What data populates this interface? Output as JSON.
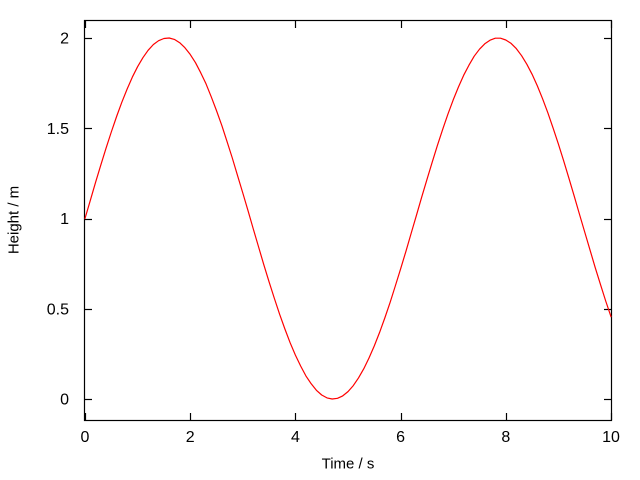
{
  "window": {
    "background": "#ffffff"
  },
  "chart_data": {
    "type": "line",
    "title": "",
    "xlabel": "Time / s",
    "ylabel": "Height / m",
    "xlim": [
      0,
      10
    ],
    "ylim": [
      0,
      2
    ],
    "xticks": [
      0,
      2,
      4,
      6,
      8,
      10
    ],
    "xtick_labels": [
      "0",
      "2",
      "4",
      "6",
      "8",
      "10"
    ],
    "yticks": [
      0,
      0.5,
      1,
      1.5,
      2
    ],
    "ytick_labels": [
      "0",
      "0.5",
      "1",
      "1.5",
      "2"
    ],
    "grid": false,
    "legend": "none",
    "tick_style": "inward-mirrored",
    "border_color": "#000000",
    "text_color": "#000000",
    "background_color": "#ffffff",
    "series": [
      {
        "name": "height",
        "color": "#ff0000",
        "x": [
          0.0,
          0.1,
          0.2,
          0.3,
          0.4,
          0.5,
          0.6,
          0.7,
          0.8,
          0.9,
          1.0,
          1.1,
          1.2,
          1.3,
          1.4,
          1.5,
          1.6,
          1.7,
          1.8,
          1.9,
          2.0,
          2.1,
          2.2,
          2.3,
          2.4,
          2.5,
          2.6,
          2.7,
          2.8,
          2.9,
          3.0,
          3.1,
          3.2,
          3.3,
          3.4,
          3.5,
          3.6,
          3.7,
          3.8,
          3.9,
          4.0,
          4.1,
          4.2,
          4.3,
          4.4,
          4.5,
          4.6,
          4.7,
          4.8,
          4.9,
          5.0,
          5.1,
          5.2,
          5.3,
          5.4,
          5.5,
          5.6,
          5.7,
          5.8,
          5.9,
          6.0,
          6.1,
          6.2,
          6.3,
          6.4,
          6.5,
          6.6,
          6.7,
          6.8,
          6.9,
          7.0,
          7.1,
          7.2,
          7.3,
          7.4,
          7.5,
          7.6,
          7.7,
          7.8,
          7.9,
          8.0,
          8.1,
          8.2,
          8.3,
          8.4,
          8.5,
          8.6,
          8.7,
          8.8,
          8.9,
          9.0,
          9.1,
          9.2,
          9.3,
          9.4,
          9.5,
          9.6,
          9.7,
          9.8,
          9.9,
          10.0
        ],
        "y": [
          1.0,
          1.1,
          1.199,
          1.296,
          1.389,
          1.479,
          1.565,
          1.644,
          1.717,
          1.783,
          1.841,
          1.891,
          1.932,
          1.964,
          1.985,
          1.997,
          2.0,
          1.992,
          1.974,
          1.946,
          1.909,
          1.863,
          1.808,
          1.746,
          1.675,
          1.598,
          1.516,
          1.427,
          1.335,
          1.239,
          1.141,
          1.042,
          0.942,
          0.842,
          0.744,
          0.649,
          0.557,
          0.47,
          0.388,
          0.312,
          0.243,
          0.182,
          0.128,
          0.084,
          0.048,
          0.022,
          0.006,
          0.0,
          0.004,
          0.017,
          0.041,
          0.074,
          0.117,
          0.168,
          0.227,
          0.294,
          0.369,
          0.449,
          0.535,
          0.626,
          0.721,
          0.818,
          0.917,
          1.017,
          1.117,
          1.215,
          1.312,
          1.405,
          1.494,
          1.578,
          1.657,
          1.729,
          1.794,
          1.85,
          1.899,
          1.938,
          1.968,
          1.988,
          1.999,
          1.999,
          1.989,
          1.97,
          1.941,
          1.902,
          1.855,
          1.799,
          1.734,
          1.663,
          1.585,
          1.501,
          1.412,
          1.319,
          1.223,
          1.124,
          1.025,
          0.925,
          0.826,
          0.728,
          0.634,
          0.543,
          0.456
        ]
      }
    ]
  }
}
